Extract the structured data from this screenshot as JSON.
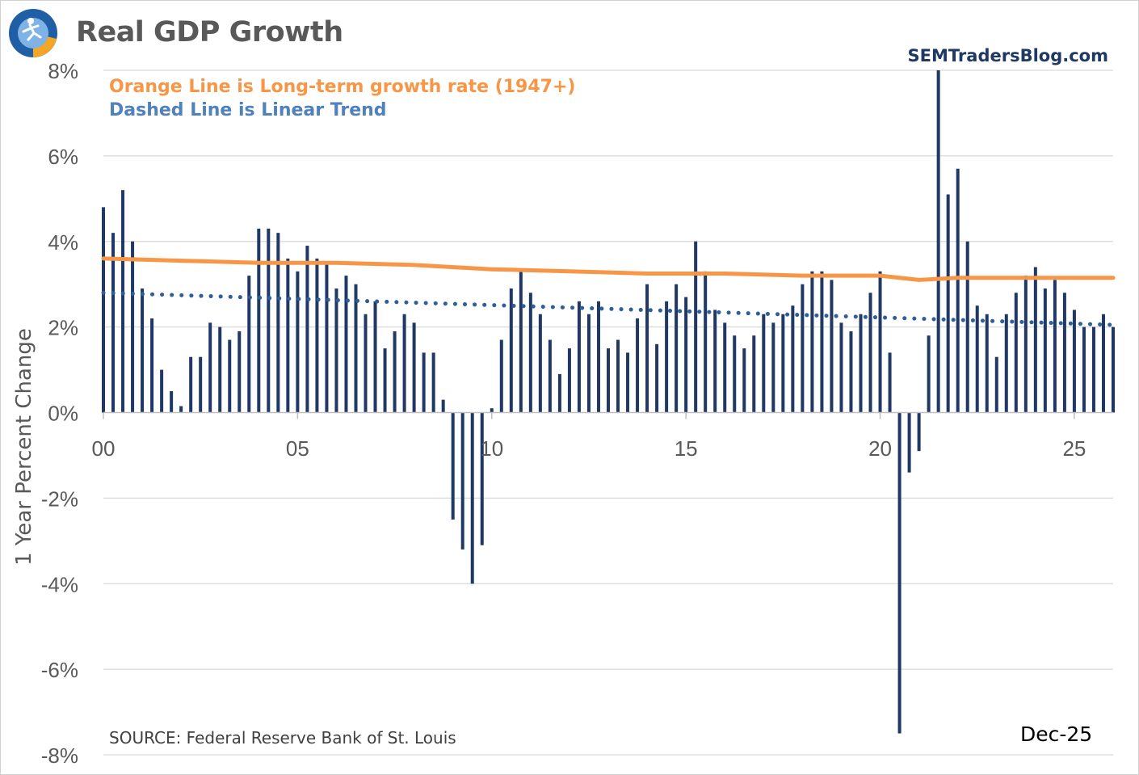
{
  "title": "Real GDP Growth",
  "logo": {
    "icon": "runner-logo-icon",
    "colors": {
      "ring": "#1f5fa5",
      "accent": "#f5a623"
    }
  },
  "website": "SEMTradersBlog.com",
  "annotations": {
    "orange_note": "Orange Line is Long-term growth rate (1947+)",
    "dashed_note": "Dashed Line is Linear Trend"
  },
  "source": "SOURCE:  Federal Reserve Bank of St. Louis",
  "as_of": "Dec-25",
  "colors": {
    "bars": "#1f3864",
    "long_term": "#f79646",
    "trend": "#2e5f9a",
    "grid": "#d9d9d9",
    "tick_text": "#595959"
  },
  "chart_data": {
    "type": "bar",
    "title": "Real GDP Growth",
    "ylabel": "1 Year Percent Change",
    "xlabel": "",
    "ylim": [
      -8,
      8
    ],
    "xlim": [
      2000,
      2026
    ],
    "y_ticks": [
      8,
      6,
      4,
      2,
      0,
      -2,
      -4,
      -6,
      -8
    ],
    "y_tick_labels": [
      "8%",
      "6%",
      "4%",
      "2%",
      "0%",
      "-2%",
      "-4%",
      "-6%",
      "-8%"
    ],
    "x_ticks": [
      2000,
      2005,
      2010,
      2015,
      2020,
      2025
    ],
    "x_tick_labels": [
      "00",
      "05",
      "10",
      "15",
      "20",
      "25"
    ],
    "grid": true,
    "legend": "none",
    "start": 2000.0,
    "step": 0.25,
    "values": [
      4.8,
      4.2,
      5.2,
      4.0,
      2.9,
      2.2,
      1.0,
      0.5,
      0.15,
      1.3,
      1.3,
      2.1,
      2.0,
      1.7,
      1.9,
      3.2,
      4.3,
      4.3,
      4.2,
      3.6,
      3.3,
      3.9,
      3.6,
      3.5,
      2.9,
      3.2,
      3.0,
      2.3,
      2.6,
      1.5,
      1.9,
      2.3,
      2.1,
      1.4,
      1.4,
      0.3,
      -2.5,
      -3.2,
      -4.0,
      -3.1,
      0.1,
      1.7,
      2.9,
      3.3,
      2.8,
      2.3,
      1.7,
      0.9,
      1.5,
      2.6,
      2.3,
      2.6,
      1.5,
      1.7,
      1.4,
      2.2,
      3.0,
      1.6,
      2.6,
      3.0,
      2.7,
      4.0,
      3.3,
      2.4,
      2.1,
      1.8,
      1.5,
      1.8,
      2.3,
      2.1,
      2.3,
      2.5,
      3.0,
      3.3,
      3.3,
      3.1,
      2.1,
      1.9,
      2.3,
      2.8,
      3.3,
      1.4,
      -7.5,
      -1.4,
      -0.9,
      1.8,
      8.0,
      5.1,
      5.7,
      4.0,
      2.5,
      2.3,
      1.3,
      2.3,
      2.8,
      3.2,
      3.4,
      2.9,
      3.1,
      2.8,
      2.4,
      2.0,
      2.0,
      2.3,
      2.0
    ],
    "series": [
      {
        "name": "Real GDP 1 Year Percent Change",
        "type": "bar",
        "color": "#1f3864"
      },
      {
        "name": "Long-term growth rate (1947+)",
        "type": "line",
        "color": "#f79646",
        "x": [
          2000,
          2002,
          2004,
          2006,
          2008,
          2010,
          2012,
          2014,
          2016,
          2018,
          2020,
          2021,
          2022,
          2024,
          2026
        ],
        "values": [
          3.6,
          3.55,
          3.5,
          3.5,
          3.45,
          3.35,
          3.3,
          3.25,
          3.25,
          3.2,
          3.2,
          3.1,
          3.15,
          3.15,
          3.15
        ]
      },
      {
        "name": "Linear Trend",
        "type": "dotted-line",
        "color": "#2e5f9a",
        "x": [
          2000,
          2026
        ],
        "values": [
          2.8,
          2.05
        ]
      }
    ]
  }
}
